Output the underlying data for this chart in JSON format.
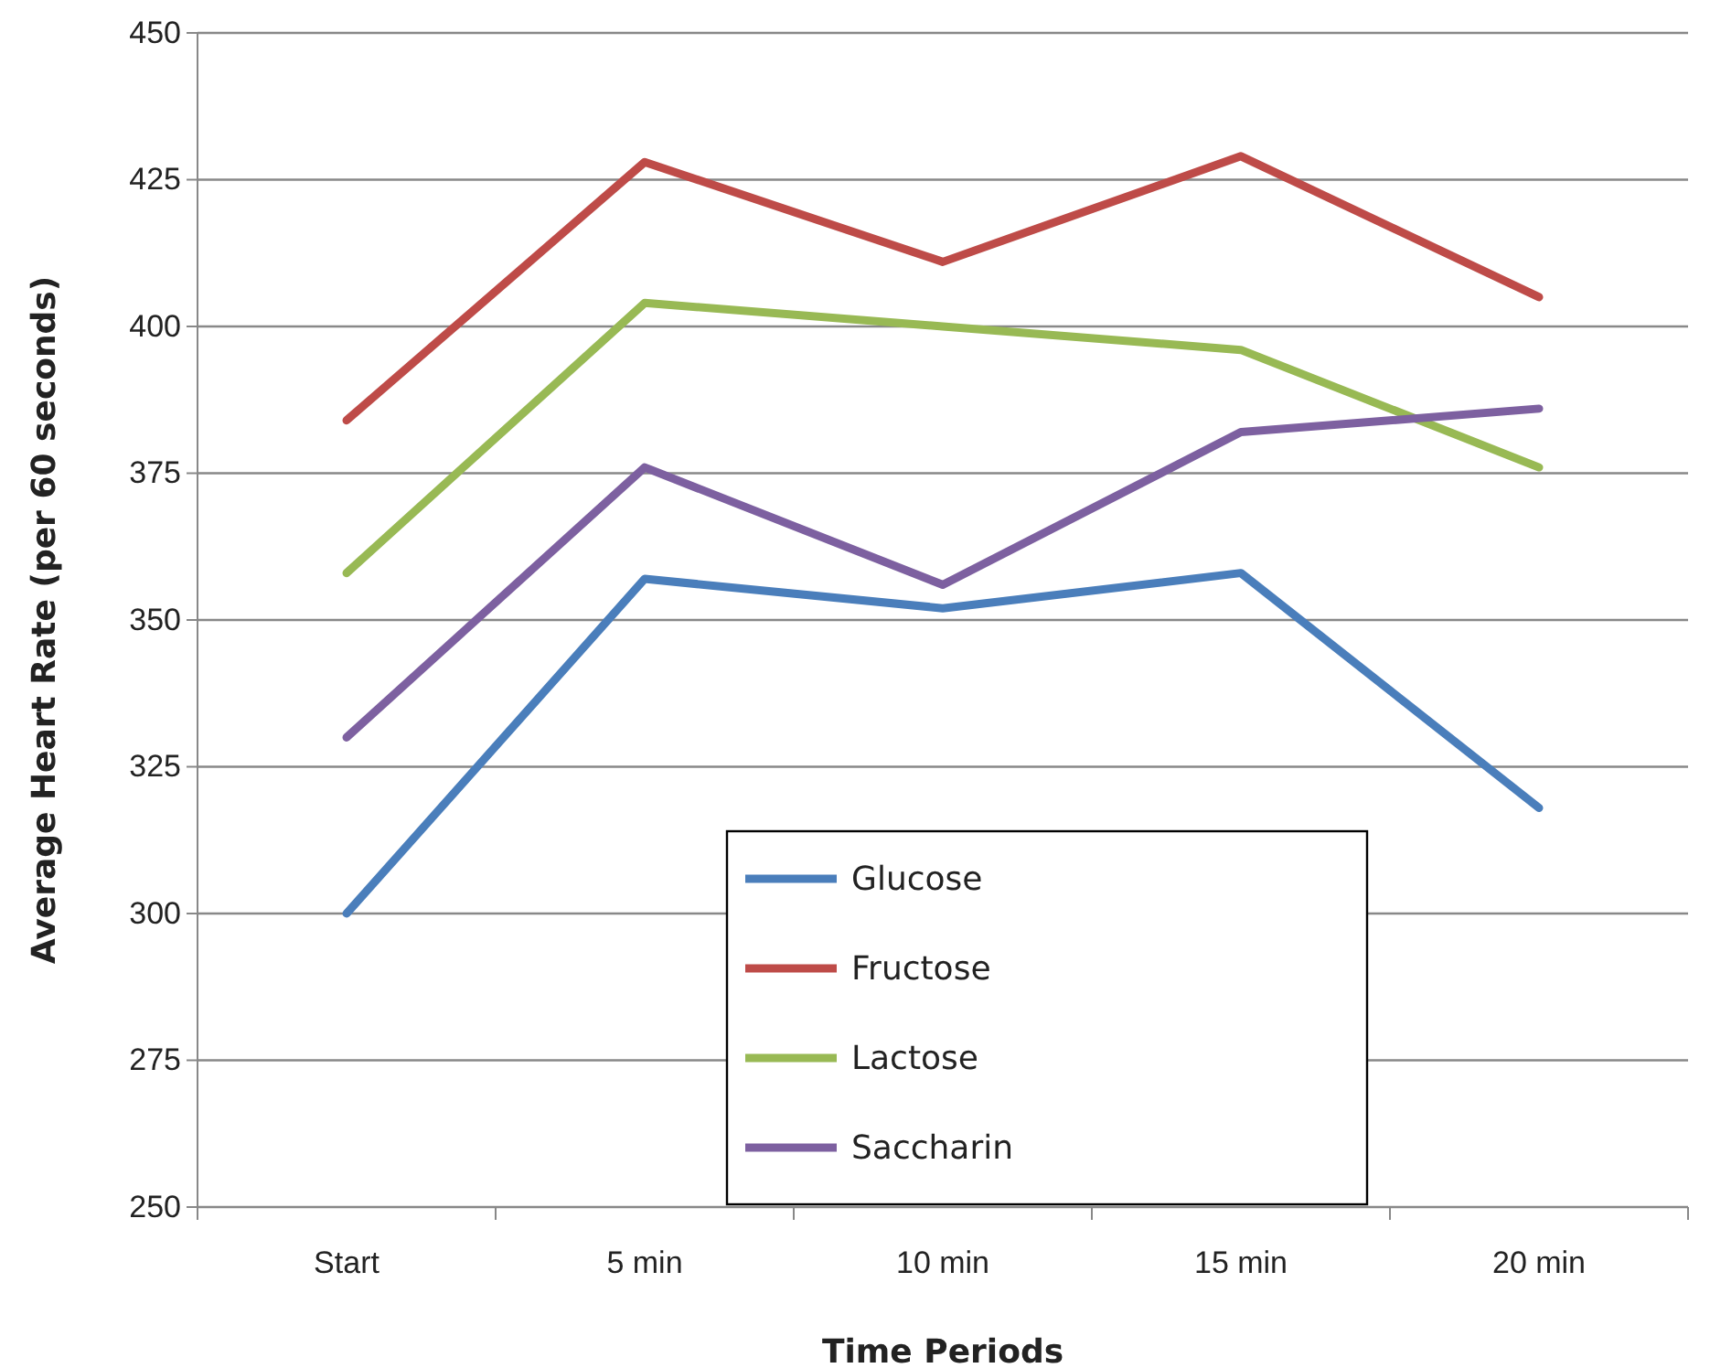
{
  "chart_data": {
    "type": "line",
    "xlabel": "Time Periods",
    "ylabel": "Average Heart Rate (per 60 seconds)",
    "categories": [
      "Start",
      "5 min",
      "10 min",
      "15 min",
      "20 min"
    ],
    "series": [
      {
        "name": "Glucose",
        "color": "#4a7ebb",
        "values": [
          300,
          357,
          352,
          358,
          318
        ]
      },
      {
        "name": "Fructose",
        "color": "#be4b48",
        "values": [
          384,
          428,
          411,
          429,
          405
        ]
      },
      {
        "name": "Lactose",
        "color": "#98b954",
        "values": [
          358,
          404,
          400,
          396,
          376
        ]
      },
      {
        "name": "Saccharin",
        "color": "#7d60a0",
        "values": [
          330,
          376,
          356,
          382,
          386
        ]
      }
    ],
    "ylim": [
      250,
      450
    ],
    "yticks": [
      250,
      275,
      300,
      325,
      350,
      375,
      400,
      425,
      450
    ],
    "grid": "y",
    "legend": "bottom",
    "marker": "none",
    "line_style": "solid"
  }
}
